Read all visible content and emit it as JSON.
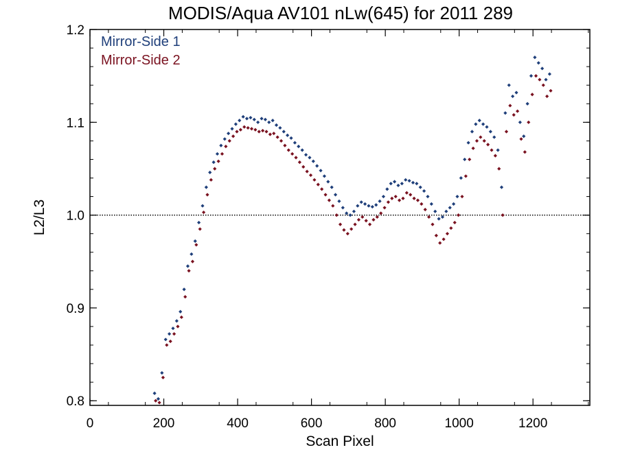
{
  "chart_data": {
    "type": "scatter",
    "title": "MODIS/Aqua AV101 nLw(645) for 2011 289",
    "xlabel": "Scan Pixel",
    "ylabel": "L2/L3",
    "xlim": [
      0,
      1354
    ],
    "ylim": [
      0.795,
      1.2
    ],
    "xticks": [
      0,
      200,
      400,
      600,
      800,
      1000,
      1200
    ],
    "xtick_labels": [
      "0",
      "200",
      "400",
      "600",
      "800",
      "1000",
      "1200"
    ],
    "yticks": [
      0.8,
      0.9,
      1.0,
      1.1,
      1.2
    ],
    "ytick_labels": [
      "0.8",
      "0.9",
      "1.0",
      "1.1",
      "1.2"
    ],
    "reference_line": {
      "y": 1.0,
      "style": "dotted"
    },
    "grid": false,
    "legend": "top-left",
    "series": [
      {
        "name": "Mirror-Side 1",
        "color": "#1f3f7a",
        "points": [
          [
            175,
            0.808
          ],
          [
            185,
            0.802
          ],
          [
            195,
            0.83
          ],
          [
            205,
            0.866
          ],
          [
            215,
            0.872
          ],
          [
            225,
            0.878
          ],
          [
            235,
            0.886
          ],
          [
            245,
            0.896
          ],
          [
            255,
            0.92
          ],
          [
            265,
            0.945
          ],
          [
            275,
            0.958
          ],
          [
            285,
            0.972
          ],
          [
            295,
            0.992
          ],
          [
            305,
            1.01
          ],
          [
            315,
            1.03
          ],
          [
            325,
            1.046
          ],
          [
            335,
            1.057
          ],
          [
            345,
            1.066
          ],
          [
            355,
            1.075
          ],
          [
            365,
            1.082
          ],
          [
            375,
            1.088
          ],
          [
            385,
            1.093
          ],
          [
            395,
            1.098
          ],
          [
            405,
            1.102
          ],
          [
            415,
            1.106
          ],
          [
            425,
            1.104
          ],
          [
            435,
            1.105
          ],
          [
            445,
            1.103
          ],
          [
            455,
            1.1
          ],
          [
            465,
            1.104
          ],
          [
            475,
            1.103
          ],
          [
            485,
            1.1
          ],
          [
            495,
            1.102
          ],
          [
            505,
            1.097
          ],
          [
            515,
            1.094
          ],
          [
            525,
            1.09
          ],
          [
            535,
            1.086
          ],
          [
            545,
            1.083
          ],
          [
            555,
            1.078
          ],
          [
            565,
            1.074
          ],
          [
            575,
            1.07
          ],
          [
            585,
            1.065
          ],
          [
            595,
            1.062
          ],
          [
            605,
            1.058
          ],
          [
            615,
            1.053
          ],
          [
            625,
            1.048
          ],
          [
            635,
            1.042
          ],
          [
            645,
            1.036
          ],
          [
            655,
            1.03
          ],
          [
            665,
            1.022
          ],
          [
            675,
            1.015
          ],
          [
            685,
            1.008
          ],
          [
            695,
            1.002
          ],
          [
            705,
            1.0
          ],
          [
            715,
            1.004
          ],
          [
            725,
            1.01
          ],
          [
            735,
            1.014
          ],
          [
            745,
            1.012
          ],
          [
            755,
            1.01
          ],
          [
            765,
            1.009
          ],
          [
            775,
            1.011
          ],
          [
            785,
            1.015
          ],
          [
            795,
            1.02
          ],
          [
            805,
            1.028
          ],
          [
            815,
            1.034
          ],
          [
            825,
            1.036
          ],
          [
            835,
            1.032
          ],
          [
            845,
            1.034
          ],
          [
            855,
            1.038
          ],
          [
            865,
            1.037
          ],
          [
            875,
            1.035
          ],
          [
            885,
            1.034
          ],
          [
            895,
            1.03
          ],
          [
            905,
            1.026
          ],
          [
            915,
            1.02
          ],
          [
            925,
            1.012
          ],
          [
            935,
            1.004
          ],
          [
            945,
            0.996
          ],
          [
            955,
            0.998
          ],
          [
            965,
            1.004
          ],
          [
            975,
            1.008
          ],
          [
            985,
            1.012
          ],
          [
            995,
            1.02
          ],
          [
            1005,
            1.04
          ],
          [
            1015,
            1.06
          ],
          [
            1025,
            1.078
          ],
          [
            1035,
            1.09
          ],
          [
            1045,
            1.098
          ],
          [
            1055,
            1.102
          ],
          [
            1065,
            1.098
          ],
          [
            1075,
            1.095
          ],
          [
            1085,
            1.09
          ],
          [
            1095,
            1.084
          ],
          [
            1105,
            1.07
          ],
          [
            1115,
            1.03
          ],
          [
            1125,
            1.11
          ],
          [
            1135,
            1.14
          ],
          [
            1145,
            1.128
          ],
          [
            1155,
            1.132
          ],
          [
            1165,
            1.1
          ],
          [
            1175,
            1.085
          ],
          [
            1185,
            1.12
          ],
          [
            1195,
            1.15
          ],
          [
            1205,
            1.17
          ],
          [
            1215,
            1.164
          ],
          [
            1225,
            1.158
          ],
          [
            1235,
            1.146
          ],
          [
            1245,
            1.152
          ]
        ]
      },
      {
        "name": "Mirror-Side 2",
        "color": "#7a1220",
        "points": [
          [
            178,
            0.8
          ],
          [
            188,
            0.798
          ],
          [
            198,
            0.825
          ],
          [
            208,
            0.86
          ],
          [
            218,
            0.864
          ],
          [
            228,
            0.872
          ],
          [
            238,
            0.88
          ],
          [
            248,
            0.89
          ],
          [
            258,
            0.912
          ],
          [
            268,
            0.94
          ],
          [
            278,
            0.95
          ],
          [
            288,
            0.968
          ],
          [
            298,
            0.985
          ],
          [
            308,
            1.003
          ],
          [
            318,
            1.022
          ],
          [
            328,
            1.038
          ],
          [
            338,
            1.05
          ],
          [
            348,
            1.058
          ],
          [
            358,
            1.066
          ],
          [
            368,
            1.074
          ],
          [
            378,
            1.08
          ],
          [
            388,
            1.085
          ],
          [
            398,
            1.09
          ],
          [
            408,
            1.092
          ],
          [
            418,
            1.095
          ],
          [
            428,
            1.094
          ],
          [
            438,
            1.093
          ],
          [
            448,
            1.092
          ],
          [
            458,
            1.09
          ],
          [
            468,
            1.091
          ],
          [
            478,
            1.09
          ],
          [
            488,
            1.087
          ],
          [
            498,
            1.088
          ],
          [
            508,
            1.084
          ],
          [
            518,
            1.08
          ],
          [
            528,
            1.075
          ],
          [
            538,
            1.07
          ],
          [
            548,
            1.066
          ],
          [
            558,
            1.062
          ],
          [
            568,
            1.057
          ],
          [
            578,
            1.052
          ],
          [
            588,
            1.047
          ],
          [
            598,
            1.043
          ],
          [
            608,
            1.038
          ],
          [
            618,
            1.033
          ],
          [
            628,
            1.028
          ],
          [
            638,
            1.022
          ],
          [
            648,
            1.016
          ],
          [
            658,
            1.01
          ],
          [
            668,
            1.0
          ],
          [
            678,
            0.99
          ],
          [
            688,
            0.984
          ],
          [
            698,
            0.98
          ],
          [
            708,
            0.985
          ],
          [
            718,
            0.99
          ],
          [
            728,
            0.995
          ],
          [
            738,
            0.998
          ],
          [
            748,
            0.994
          ],
          [
            758,
            0.99
          ],
          [
            768,
            0.995
          ],
          [
            778,
            0.998
          ],
          [
            788,
            1.002
          ],
          [
            798,
            1.008
          ],
          [
            808,
            1.014
          ],
          [
            818,
            1.018
          ],
          [
            828,
            1.02
          ],
          [
            838,
            1.016
          ],
          [
            848,
            1.018
          ],
          [
            858,
            1.024
          ],
          [
            868,
            1.022
          ],
          [
            878,
            1.018
          ],
          [
            888,
            1.016
          ],
          [
            898,
            1.012
          ],
          [
            908,
            1.006
          ],
          [
            918,
            0.998
          ],
          [
            928,
            0.99
          ],
          [
            938,
            0.978
          ],
          [
            948,
            0.97
          ],
          [
            958,
            0.974
          ],
          [
            968,
            0.98
          ],
          [
            978,
            0.986
          ],
          [
            988,
            0.992
          ],
          [
            998,
            1.0
          ],
          [
            1008,
            1.02
          ],
          [
            1018,
            1.042
          ],
          [
            1028,
            1.06
          ],
          [
            1038,
            1.072
          ],
          [
            1048,
            1.08
          ],
          [
            1058,
            1.084
          ],
          [
            1068,
            1.08
          ],
          [
            1078,
            1.076
          ],
          [
            1088,
            1.07
          ],
          [
            1098,
            1.064
          ],
          [
            1108,
            1.05
          ],
          [
            1118,
            1.0
          ],
          [
            1128,
            1.09
          ],
          [
            1138,
            1.118
          ],
          [
            1148,
            1.108
          ],
          [
            1158,
            1.112
          ],
          [
            1168,
            1.082
          ],
          [
            1178,
            1.068
          ],
          [
            1188,
            1.1
          ],
          [
            1198,
            1.13
          ],
          [
            1208,
            1.15
          ],
          [
            1218,
            1.146
          ],
          [
            1228,
            1.14
          ],
          [
            1238,
            1.128
          ],
          [
            1248,
            1.134
          ]
        ]
      }
    ]
  }
}
